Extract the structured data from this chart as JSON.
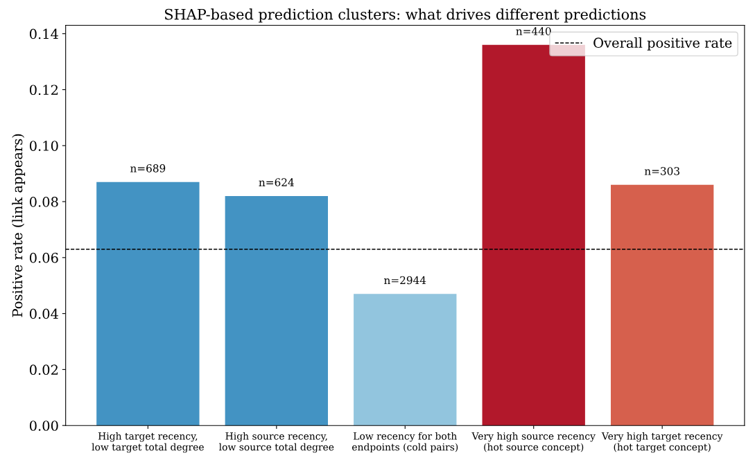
{
  "chart_data": {
    "type": "bar",
    "title": "SHAP-based prediction clusters: what drives different predictions",
    "ylabel": "Positive rate (link appears)",
    "categories": [
      "High target recency,\nlow target total degree",
      "High source recency,\nlow source total degree",
      "Low recency for both\nendpoints (cold pairs)",
      "Very high source recency\n(hot source concept)",
      "Very high target recency\n(hot target concept)"
    ],
    "values": [
      0.087,
      0.082,
      0.047,
      0.136,
      0.086
    ],
    "colors": [
      "#4393c3",
      "#4393c3",
      "#92c5de",
      "#b2182b",
      "#d6604d"
    ],
    "annotations": [
      {
        "text": "n=689",
        "x": "High target recency,\nlow target total degree",
        "y": 0.087
      },
      {
        "text": "n=624",
        "x": "High source recency,\nlow source total degree",
        "y": 0.082
      },
      {
        "text": "n=2944",
        "x": "Low recency for both\nendpoints (cold pairs)",
        "y": 0.047
      },
      {
        "text": "n=440",
        "x": "Very high source recency\n(hot source concept)",
        "y": 0.136
      },
      {
        "text": "n=303",
        "x": "Very high target recency\n(hot target concept)",
        "y": 0.086
      }
    ],
    "ylim": [
      0,
      0.143
    ],
    "yticks": [
      {
        "value": 0,
        "label": "0.00"
      },
      {
        "value": 0.02,
        "label": "0.02"
      },
      {
        "value": 0.04,
        "label": "0.04"
      },
      {
        "value": 0.06,
        "label": "0.06"
      },
      {
        "value": 0.08,
        "label": "0.08"
      },
      {
        "value": 0.1,
        "label": "0.10"
      },
      {
        "value": 0.12,
        "label": "0.12"
      },
      {
        "value": 0.14,
        "label": "0.14"
      }
    ],
    "ref_lines": [
      {
        "axis": "y",
        "value": 0.063,
        "label": "Overall positive rate",
        "color": "#000000",
        "line_style": "dashed"
      }
    ],
    "legend": "top right",
    "grid": false
  }
}
